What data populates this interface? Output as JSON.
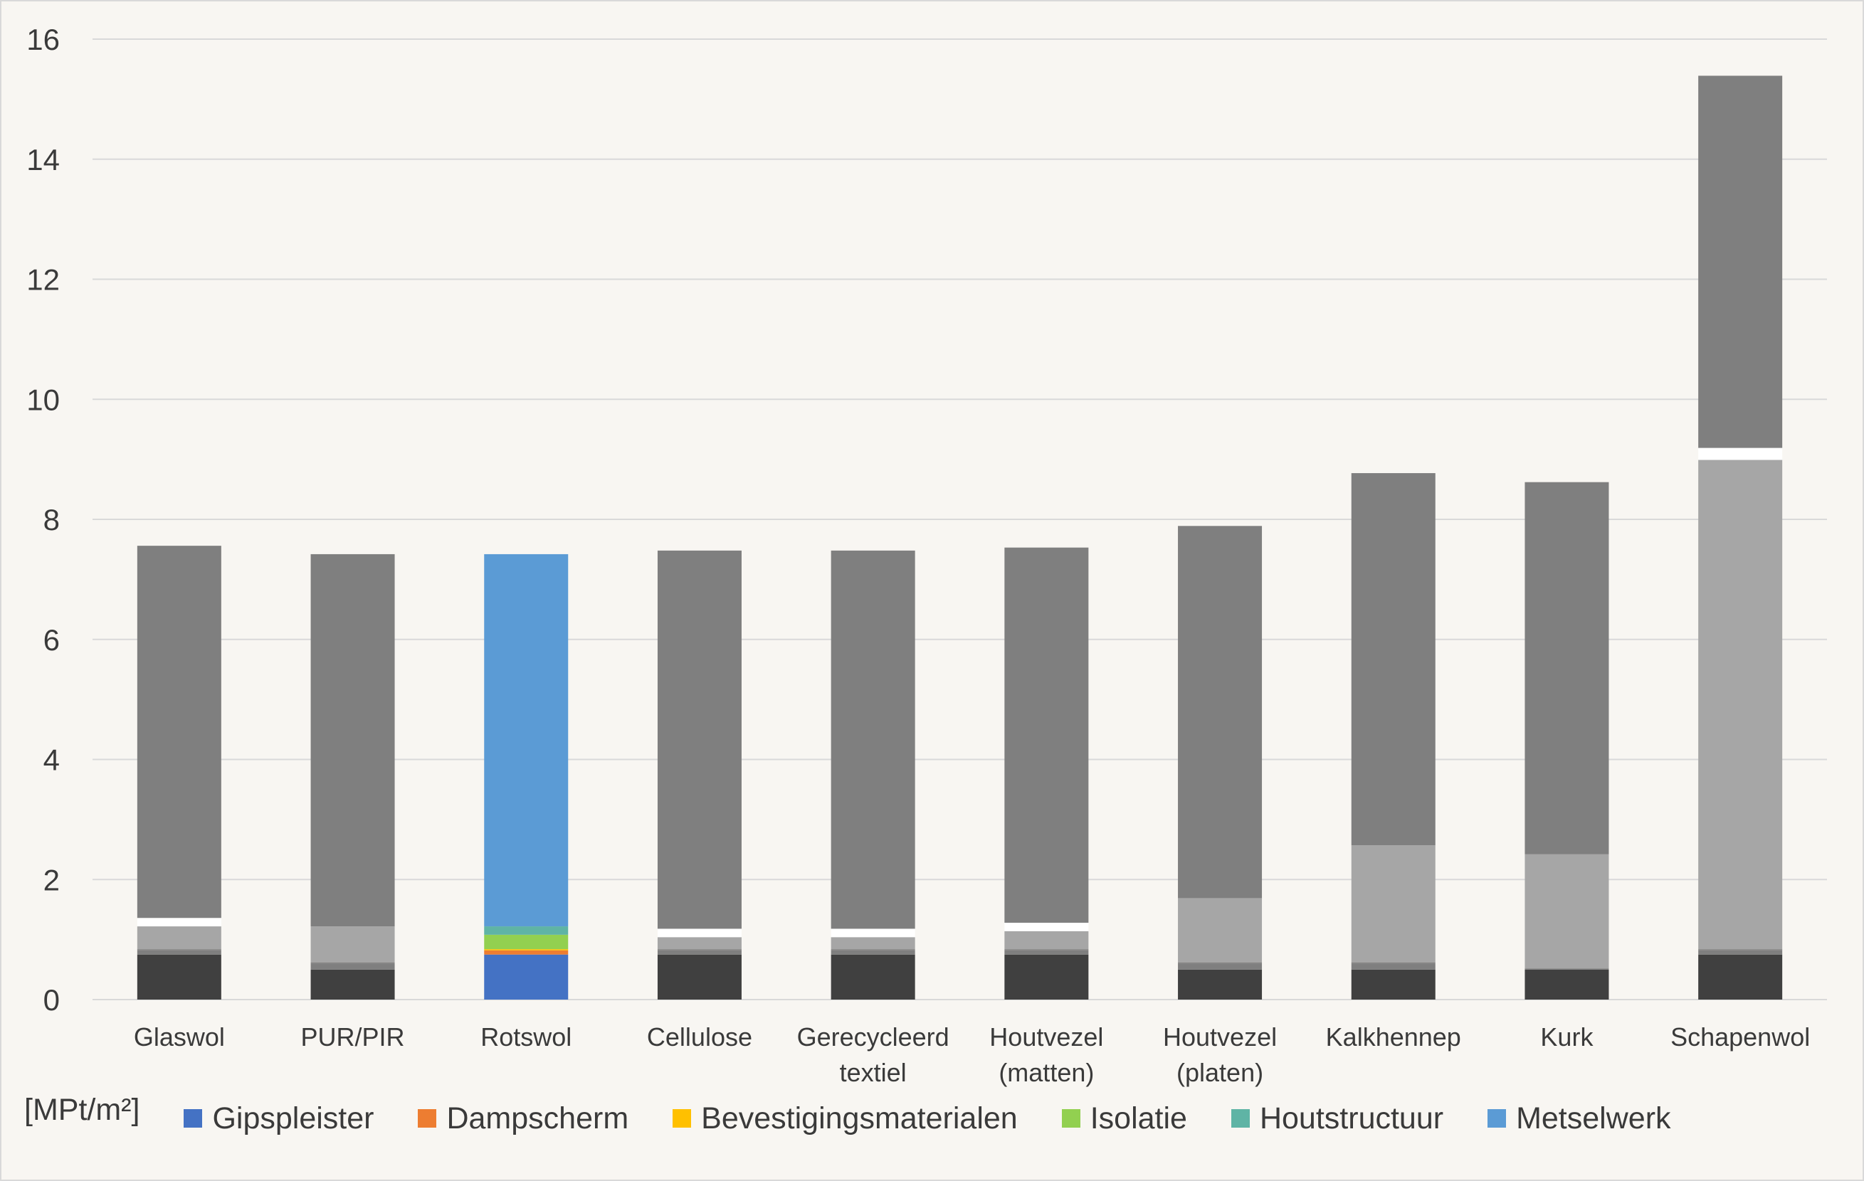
{
  "chart_data": {
    "type": "bar",
    "stacked": true,
    "unit_label": "[MPt/m²]",
    "ylim": [
      0,
      16
    ],
    "yticks": [
      0,
      2,
      4,
      6,
      8,
      10,
      12,
      14,
      16
    ],
    "grid": true,
    "legend_position": "bottom",
    "categories": [
      [
        "Glaswol"
      ],
      [
        "PUR/PIR"
      ],
      [
        "Rotswol"
      ],
      [
        "Cellulose"
      ],
      [
        "Gerecycleerd",
        "textiel"
      ],
      [
        "Houtvezel",
        "(matten)"
      ],
      [
        "Houtvezel",
        "(platen)"
      ],
      [
        "Kalkhennep"
      ],
      [
        "Kurk"
      ],
      [
        "Schapenwol"
      ]
    ],
    "series": [
      {
        "name": "Gipspleister",
        "color": "#4472c4",
        "values": [
          0.75,
          0.5,
          0.75,
          0.75,
          0.75,
          0.75,
          0.5,
          0.5,
          0.5,
          0.75
        ]
      },
      {
        "name": "Dampscherm",
        "color": "#ed7d31",
        "values": [
          0.07,
          0.1,
          0.07,
          0.07,
          0.07,
          0.07,
          0.1,
          0.1,
          0.0,
          0.07
        ]
      },
      {
        "name": "Bevestigingsmaterialen",
        "color": "#ffc000",
        "values": [
          0.02,
          0.02,
          0.02,
          0.02,
          0.02,
          0.02,
          0.02,
          0.02,
          0.02,
          0.02
        ]
      },
      {
        "name": "Isolatie",
        "color": "#92d050",
        "values": [
          0.38,
          0.6,
          0.24,
          0.2,
          0.2,
          0.3,
          1.07,
          1.95,
          1.9,
          8.15
        ]
      },
      {
        "name": "Houtstructuur",
        "color": "#5fb4a5",
        "values": [
          0.14,
          0.0,
          0.14,
          0.14,
          0.14,
          0.14,
          0.0,
          0.0,
          0.0,
          0.2
        ]
      },
      {
        "name": "Metselwerk",
        "color": "#5b9bd5",
        "values": [
          6.2,
          6.2,
          6.2,
          6.3,
          6.3,
          6.25,
          6.2,
          6.2,
          6.2,
          6.2
        ]
      }
    ],
    "segment_colors": {
      "Gipspleister": "#404040",
      "Dampscherm": "#7f7f7f",
      "Bevestigingsmaterialen": "#7f7f7f",
      "Isolatie": "#a6a6a6",
      "Houtstructuur": "#ffffff",
      "Metselwerk": "#7f7f7f"
    },
    "highlighted_category": "Rotswol"
  }
}
